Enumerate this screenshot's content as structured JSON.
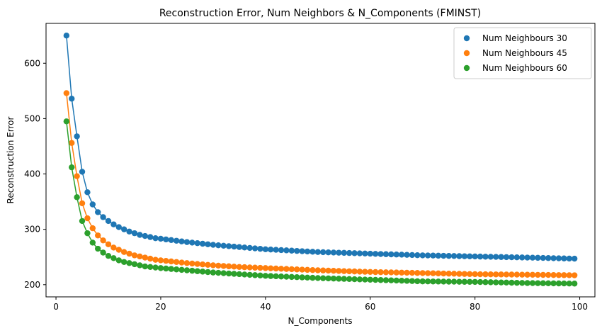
{
  "chart_data": {
    "type": "line",
    "title": "Reconstruction Error, Num Neighbors & N_Components (FMINST)",
    "xlabel": "N_Components",
    "ylabel": "Reconstruction Error",
    "xlim": [
      -1.9,
      102.9
    ],
    "ylim": [
      178,
      672
    ],
    "xticks": [
      0,
      20,
      40,
      60,
      80,
      100
    ],
    "yticks": [
      200,
      300,
      400,
      500,
      600
    ],
    "grid": false,
    "legend_position": "top-right",
    "x": [
      2,
      99
    ],
    "series": [
      {
        "name": "Num Neighbours 30",
        "color": "#1f77b4",
        "anchors": [
          [
            2,
            650
          ],
          [
            3,
            536
          ],
          [
            4,
            468
          ],
          [
            5,
            404
          ],
          [
            6,
            367
          ],
          [
            7,
            345
          ],
          [
            8,
            331
          ],
          [
            9,
            322
          ],
          [
            10,
            315
          ],
          [
            11,
            309
          ],
          [
            12,
            304
          ],
          [
            13,
            300
          ],
          [
            14,
            296
          ],
          [
            15,
            293
          ],
          [
            16,
            290
          ],
          [
            17,
            288
          ],
          [
            18,
            286
          ],
          [
            19,
            284
          ],
          [
            20,
            283
          ],
          [
            25,
            277
          ],
          [
            30,
            272
          ],
          [
            35,
            268
          ],
          [
            40,
            264
          ],
          [
            50,
            259
          ],
          [
            60,
            256
          ],
          [
            70,
            253
          ],
          [
            80,
            251
          ],
          [
            90,
            249
          ],
          [
            99,
            247
          ]
        ]
      },
      {
        "name": "Num Neighbours 45",
        "color": "#ff7f0e",
        "anchors": [
          [
            2,
            546
          ],
          [
            3,
            456
          ],
          [
            4,
            396
          ],
          [
            5,
            347
          ],
          [
            6,
            320
          ],
          [
            7,
            302
          ],
          [
            8,
            289
          ],
          [
            9,
            280
          ],
          [
            10,
            273
          ],
          [
            11,
            267
          ],
          [
            12,
            263
          ],
          [
            13,
            259
          ],
          [
            14,
            256
          ],
          [
            15,
            253
          ],
          [
            16,
            251
          ],
          [
            17,
            249
          ],
          [
            18,
            247
          ],
          [
            19,
            245
          ],
          [
            20,
            244
          ],
          [
            25,
            239
          ],
          [
            30,
            235
          ],
          [
            35,
            232
          ],
          [
            40,
            230
          ],
          [
            50,
            226
          ],
          [
            60,
            223
          ],
          [
            70,
            221
          ],
          [
            80,
            219
          ],
          [
            90,
            218
          ],
          [
            99,
            217
          ]
        ]
      },
      {
        "name": "Num Neighbours 60",
        "color": "#2ca02c",
        "anchors": [
          [
            2,
            495
          ],
          [
            3,
            412
          ],
          [
            4,
            358
          ],
          [
            5,
            315
          ],
          [
            6,
            293
          ],
          [
            7,
            276
          ],
          [
            8,
            265
          ],
          [
            9,
            258
          ],
          [
            10,
            252
          ],
          [
            11,
            248
          ],
          [
            12,
            244
          ],
          [
            13,
            241
          ],
          [
            14,
            239
          ],
          [
            15,
            237
          ],
          [
            16,
            235
          ],
          [
            17,
            233
          ],
          [
            18,
            232
          ],
          [
            19,
            231
          ],
          [
            20,
            230
          ],
          [
            25,
            226
          ],
          [
            30,
            222
          ],
          [
            35,
            219
          ],
          [
            40,
            216
          ],
          [
            50,
            212
          ],
          [
            60,
            209
          ],
          [
            70,
            206
          ],
          [
            80,
            205
          ],
          [
            90,
            203
          ],
          [
            99,
            202
          ]
        ]
      }
    ]
  }
}
